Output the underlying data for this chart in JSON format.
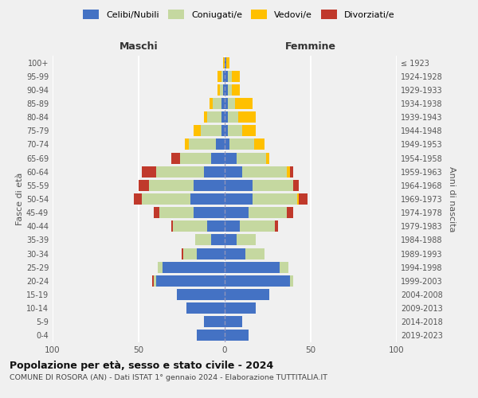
{
  "age_groups": [
    "0-4",
    "5-9",
    "10-14",
    "15-19",
    "20-24",
    "25-29",
    "30-34",
    "35-39",
    "40-44",
    "45-49",
    "50-54",
    "55-59",
    "60-64",
    "65-69",
    "70-74",
    "75-79",
    "80-84",
    "85-89",
    "90-94",
    "95-99",
    "100+"
  ],
  "year_labels": [
    "2019-2023",
    "2014-2018",
    "2009-2013",
    "2004-2008",
    "1999-2003",
    "1994-1998",
    "1989-1993",
    "1984-1988",
    "1979-1983",
    "1974-1978",
    "1969-1973",
    "1964-1968",
    "1959-1963",
    "1954-1958",
    "1949-1953",
    "1944-1948",
    "1939-1943",
    "1934-1938",
    "1929-1933",
    "1924-1928",
    "≤ 1923"
  ],
  "males": {
    "celibi": [
      16,
      12,
      22,
      28,
      40,
      36,
      16,
      8,
      10,
      18,
      20,
      18,
      12,
      8,
      5,
      2,
      2,
      2,
      1,
      1,
      0
    ],
    "coniugati": [
      0,
      0,
      0,
      0,
      1,
      3,
      8,
      9,
      20,
      20,
      28,
      26,
      28,
      18,
      16,
      12,
      8,
      5,
      2,
      1,
      0
    ],
    "vedovi": [
      0,
      0,
      0,
      0,
      0,
      0,
      0,
      0,
      0,
      0,
      0,
      0,
      0,
      0,
      2,
      4,
      2,
      2,
      1,
      2,
      1
    ],
    "divorziati": [
      0,
      0,
      0,
      0,
      1,
      0,
      1,
      0,
      1,
      3,
      5,
      6,
      8,
      5,
      0,
      0,
      0,
      0,
      0,
      0,
      0
    ]
  },
  "females": {
    "nubili": [
      14,
      10,
      18,
      26,
      38,
      32,
      12,
      7,
      9,
      14,
      16,
      16,
      10,
      7,
      3,
      2,
      2,
      2,
      2,
      2,
      1
    ],
    "coniugate": [
      0,
      0,
      0,
      0,
      2,
      5,
      11,
      11,
      20,
      22,
      26,
      24,
      26,
      17,
      14,
      8,
      6,
      4,
      2,
      2,
      0
    ],
    "vedove": [
      0,
      0,
      0,
      0,
      0,
      0,
      0,
      0,
      0,
      0,
      1,
      0,
      2,
      2,
      6,
      8,
      10,
      10,
      5,
      5,
      2
    ],
    "divorziate": [
      0,
      0,
      0,
      0,
      0,
      0,
      0,
      0,
      2,
      4,
      5,
      3,
      2,
      0,
      0,
      0,
      0,
      0,
      0,
      0,
      0
    ]
  },
  "color_celibi": "#4472c4",
  "color_coniugati": "#c5d8a0",
  "color_vedovi": "#ffc000",
  "color_divorziati": "#c0392b",
  "xlim": 100,
  "title": "Popolazione per età, sesso e stato civile - 2024",
  "subtitle": "COMUNE DI ROSORA (AN) - Dati ISTAT 1° gennaio 2024 - Elaborazione TUTTITALIA.IT",
  "ylabel": "Fasce di età",
  "ylabel_right": "Anni di nascita",
  "label_maschi": "Maschi",
  "label_femmine": "Femmine",
  "legend_celibi": "Celibi/Nubili",
  "legend_coniugati": "Coniugati/e",
  "legend_vedovi": "Vedovi/e",
  "legend_divorziati": "Divorziati/e",
  "bg_color": "#f0f0f0",
  "grid_color": "#ffffff"
}
